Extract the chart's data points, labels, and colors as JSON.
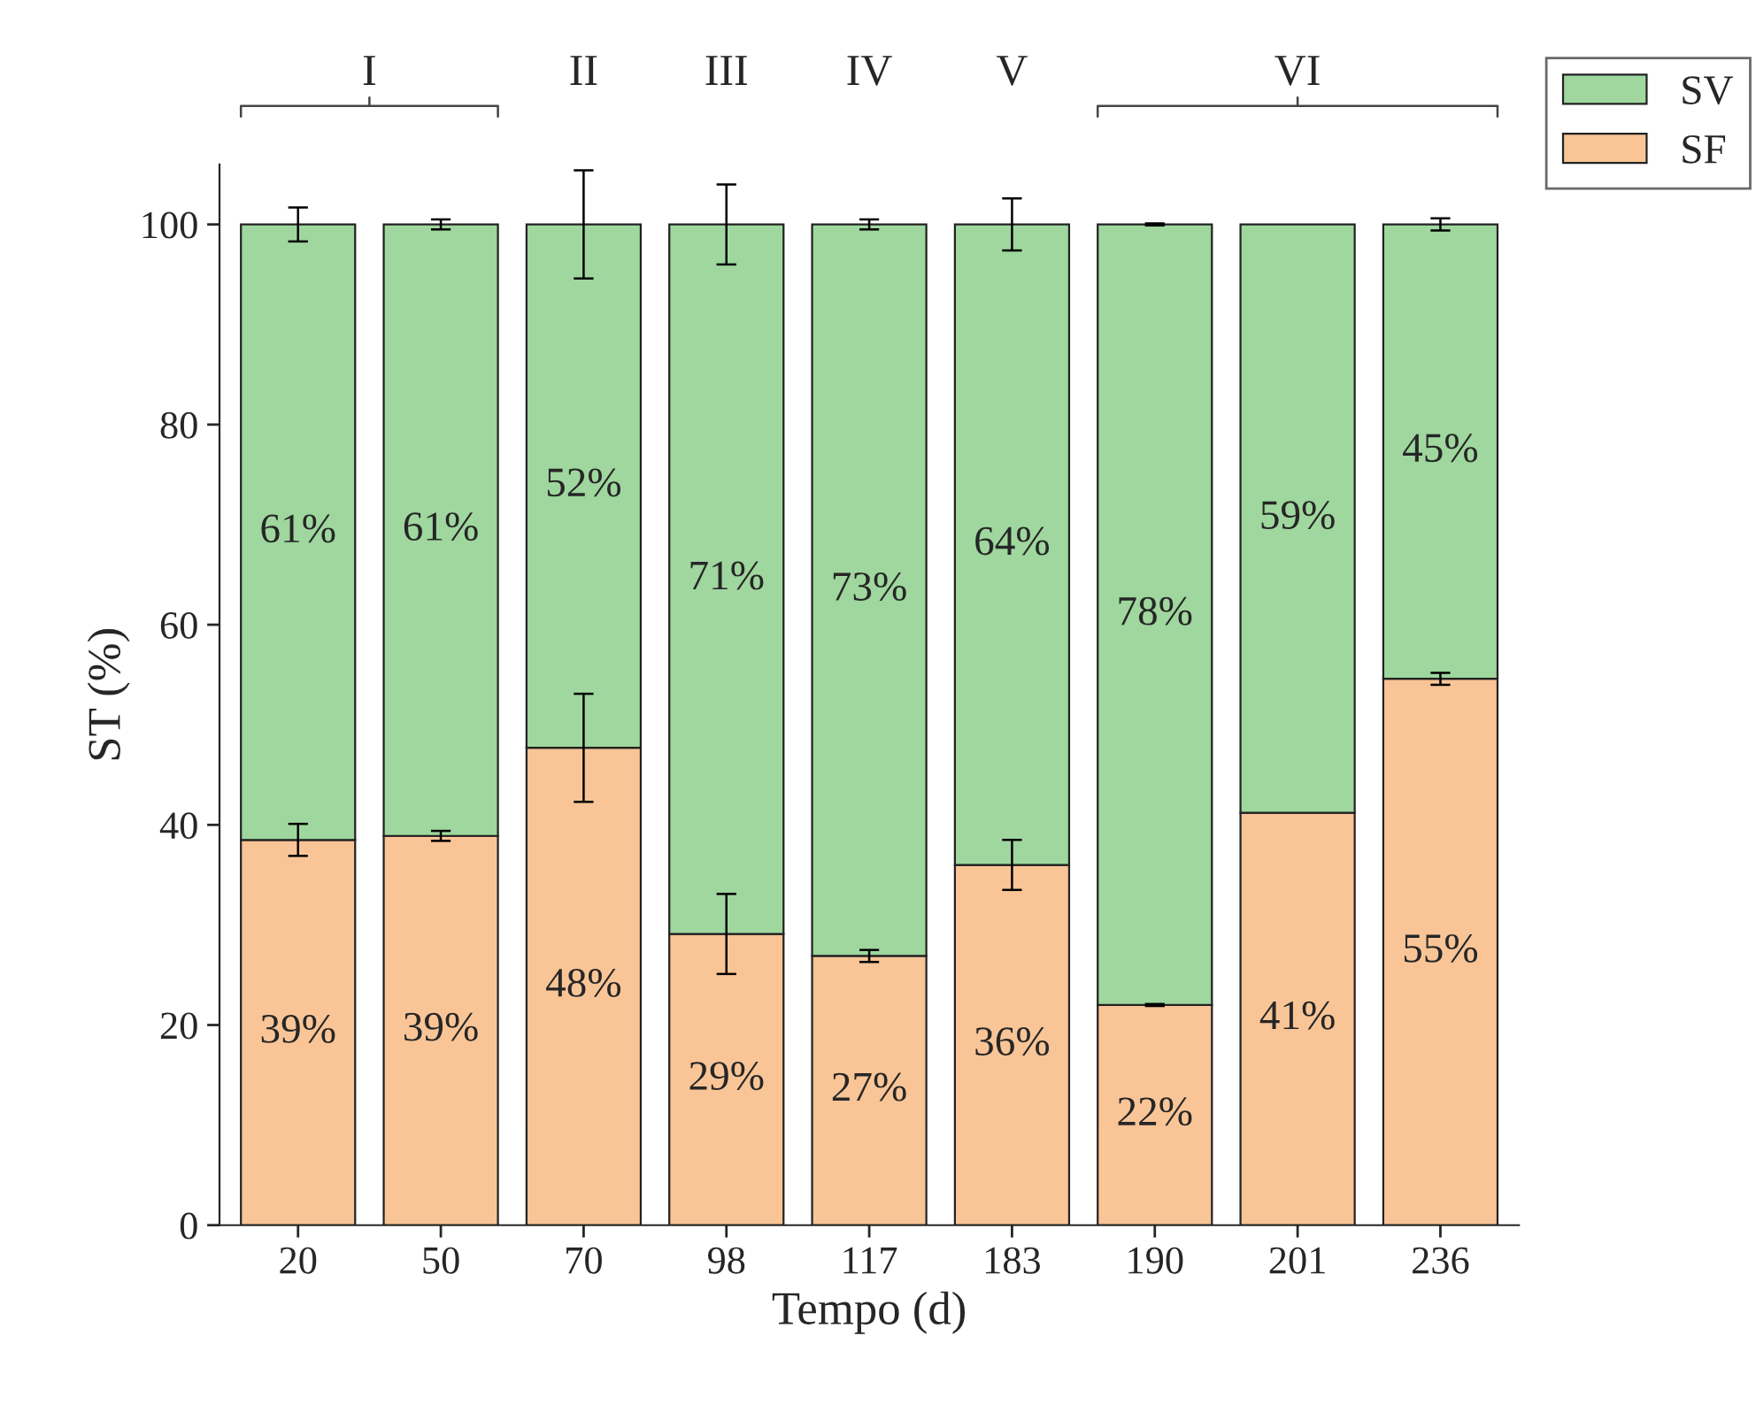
{
  "chart_data": {
    "type": "bar",
    "stacked": true,
    "xlabel": "Tempo (d)",
    "ylabel": "ST (%)",
    "categories": [
      "20",
      "50",
      "70",
      "98",
      "117",
      "183",
      "190",
      "201",
      "236"
    ],
    "series": [
      {
        "name": "SF",
        "color": "#f9c597",
        "values": [
          38.5,
          38.9,
          47.7,
          29.1,
          26.9,
          36.0,
          22.0,
          41.2,
          54.6
        ],
        "errors": [
          1.6,
          0.5,
          5.4,
          4.0,
          0.6,
          2.5,
          0.1,
          null,
          0.6
        ],
        "value_labels": [
          "39%",
          "39%",
          "48%",
          "29%",
          "27%",
          "36%",
          "22%",
          "41%",
          "55%"
        ]
      },
      {
        "name": "SV",
        "color": "#9fd79e",
        "values": [
          61.5,
          61.1,
          52.3,
          70.9,
          73.1,
          64.0,
          78.0,
          58.8,
          45.4
        ],
        "errors": [
          1.7,
          0.5,
          5.4,
          4.0,
          0.5,
          2.6,
          0.1,
          null,
          0.6
        ],
        "value_labels": [
          "61%",
          "61%",
          "52%",
          "71%",
          "73%",
          "64%",
          "78%",
          "59%",
          "45%"
        ]
      }
    ],
    "annotations": [
      "I",
      "II",
      "III",
      "IV",
      "V",
      "VI"
    ],
    "ylim": [
      0,
      106
    ],
    "yticks": [
      0,
      20,
      40,
      60,
      80,
      100
    ],
    "legend": "top right",
    "grid": false
  }
}
